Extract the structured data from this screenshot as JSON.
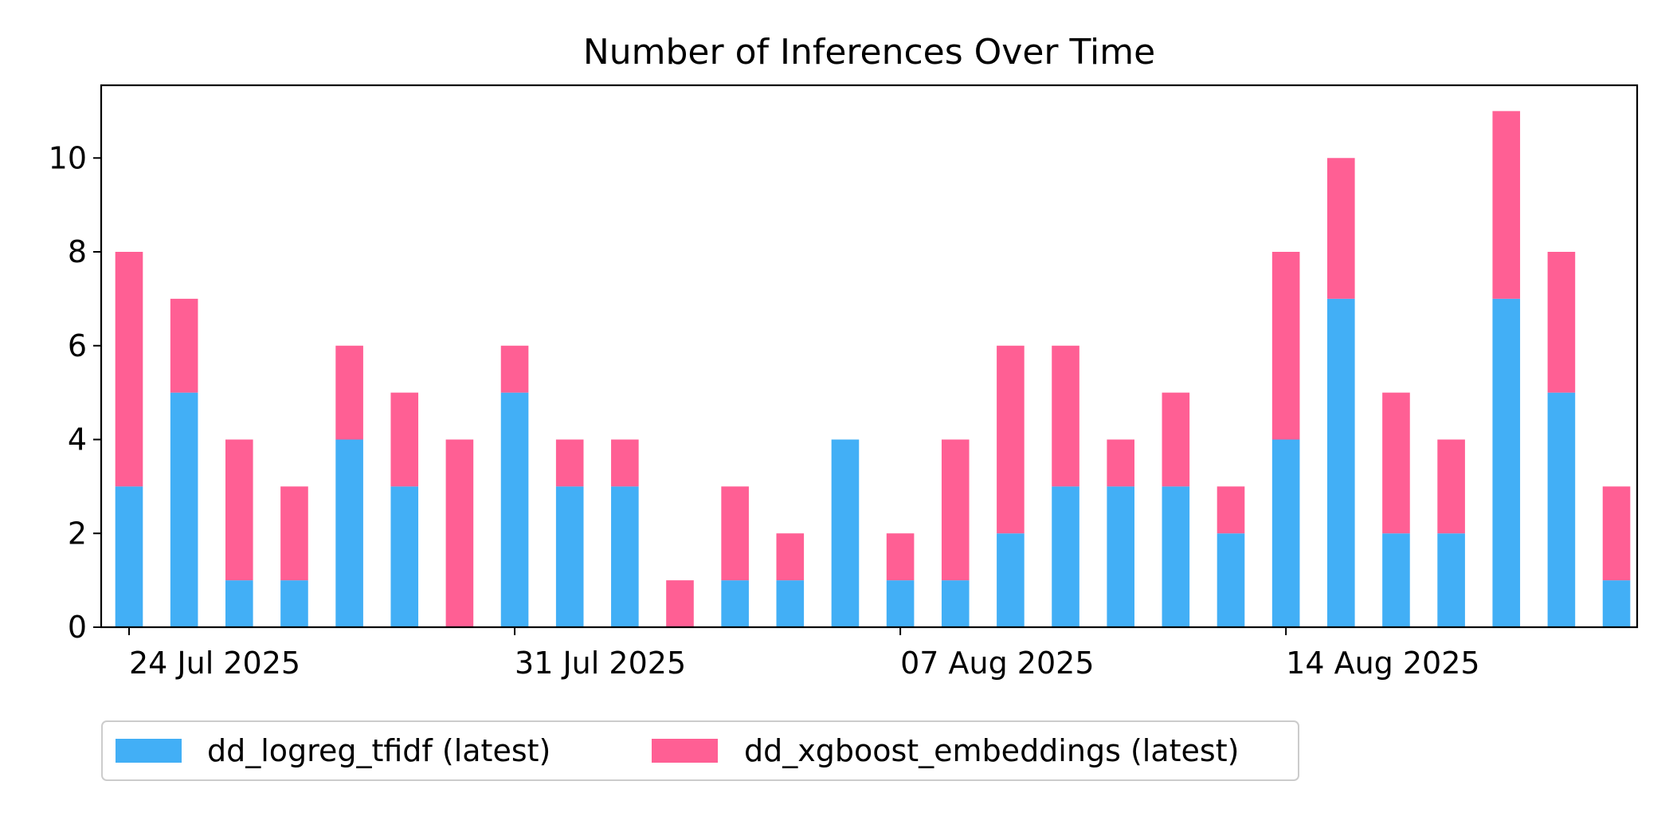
{
  "chart_data": {
    "type": "bar",
    "stacked": true,
    "title": "Number of Inferences Over Time",
    "xlabel": "",
    "ylabel": "",
    "ylim": [
      0,
      11.55
    ],
    "y_ticks": [
      0,
      2,
      4,
      6,
      8,
      10
    ],
    "x_tick_labels": [
      {
        "label": "24 Jul 2025",
        "index": 0
      },
      {
        "label": "31 Jul 2025",
        "index": 7
      },
      {
        "label": "07 Aug 2025",
        "index": 14
      },
      {
        "label": "14 Aug 2025",
        "index": 21
      }
    ],
    "categories": [
      "2025-07-24",
      "2025-07-25",
      "2025-07-26",
      "2025-07-27",
      "2025-07-28",
      "2025-07-29",
      "2025-07-30",
      "2025-07-31",
      "2025-08-01",
      "2025-08-02",
      "2025-08-03",
      "2025-08-04",
      "2025-08-05",
      "2025-08-06",
      "2025-08-07",
      "2025-08-08",
      "2025-08-09",
      "2025-08-10",
      "2025-08-11",
      "2025-08-12",
      "2025-08-13",
      "2025-08-14",
      "2025-08-15",
      "2025-08-16",
      "2025-08-17",
      "2025-08-18",
      "2025-08-19",
      "2025-08-20"
    ],
    "series": [
      {
        "name": "dd_logreg_tfidf (latest)",
        "color": "#42AFF6",
        "values": [
          3,
          5,
          1,
          1,
          4,
          3,
          0,
          5,
          3,
          3,
          0,
          1,
          1,
          4,
          1,
          1,
          2,
          3,
          3,
          3,
          2,
          4,
          7,
          2,
          2,
          7,
          5,
          1
        ]
      },
      {
        "name": "dd_xgboost_embeddings (latest)",
        "color": "#FF5F94",
        "values": [
          5,
          2,
          3,
          2,
          2,
          2,
          4,
          1,
          1,
          1,
          1,
          2,
          1,
          0,
          1,
          3,
          4,
          3,
          1,
          2,
          1,
          4,
          3,
          3,
          2,
          4,
          3,
          2
        ]
      }
    ],
    "legend_position": "bottom-left"
  }
}
